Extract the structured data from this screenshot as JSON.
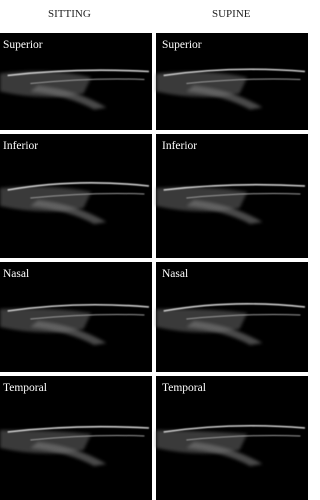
{
  "columns": [
    "SITTING",
    "SUPINE"
  ],
  "panels": [
    [
      "Superior",
      "Superior"
    ],
    [
      "Inferior",
      "Inferior"
    ],
    [
      "Nasal",
      "Nasal"
    ],
    [
      "Temporal",
      "Temporal"
    ]
  ]
}
